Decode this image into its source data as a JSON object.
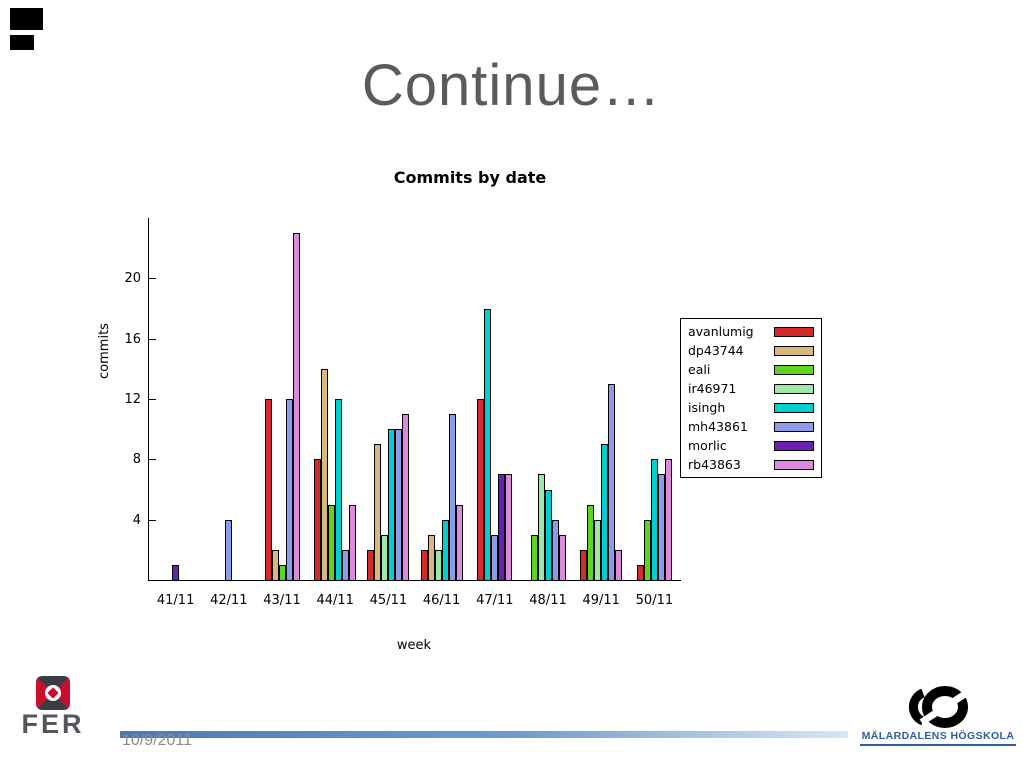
{
  "slide": {
    "title": "Continue…",
    "date": "10/9/2011"
  },
  "footer": {
    "fer_logo_text": "FER",
    "mdh_logo_text": "MÄLARDALENS HÖGSKOLA"
  },
  "chart_data": {
    "type": "bar",
    "title": "Commits by date",
    "xlabel": "week",
    "ylabel": "commits",
    "ylim": [
      0,
      24
    ],
    "yticks": [
      4,
      8,
      12,
      16,
      20
    ],
    "grid": false,
    "legend_position": "right",
    "categories": [
      "41/11",
      "42/11",
      "43/11",
      "44/11",
      "45/11",
      "46/11",
      "47/11",
      "48/11",
      "49/11",
      "50/11"
    ],
    "series": [
      {
        "name": "avanlumig",
        "color": "#d42a2a",
        "values": [
          0,
          0,
          12,
          8,
          2,
          2,
          12,
          0,
          2,
          1
        ]
      },
      {
        "name": "dp43744",
        "color": "#d9b87c",
        "values": [
          0,
          0,
          2,
          14,
          9,
          3,
          0,
          0,
          0,
          0
        ]
      },
      {
        "name": "eali",
        "color": "#5fd41c",
        "values": [
          0,
          0,
          1,
          5,
          0,
          0,
          0,
          3,
          5,
          4
        ]
      },
      {
        "name": "ir46971",
        "color": "#9de8a8",
        "values": [
          0,
          0,
          0,
          0,
          3,
          2,
          0,
          7,
          4,
          0
        ]
      },
      {
        "name": "isingh",
        "color": "#00cfcf",
        "values": [
          0,
          0,
          0,
          12,
          10,
          4,
          18,
          6,
          9,
          8
        ]
      },
      {
        "name": "mh43861",
        "color": "#8c9ce6",
        "values": [
          0,
          4,
          12,
          2,
          10,
          11,
          3,
          4,
          13,
          7
        ]
      },
      {
        "name": "morlic",
        "color": "#6a1fb0",
        "values": [
          1,
          0,
          0,
          0,
          0,
          0,
          7,
          0,
          0,
          0
        ]
      },
      {
        "name": "rb43863",
        "color": "#dd8add",
        "values": [
          0,
          0,
          23,
          5,
          11,
          5,
          7,
          3,
          2,
          8
        ]
      }
    ]
  }
}
